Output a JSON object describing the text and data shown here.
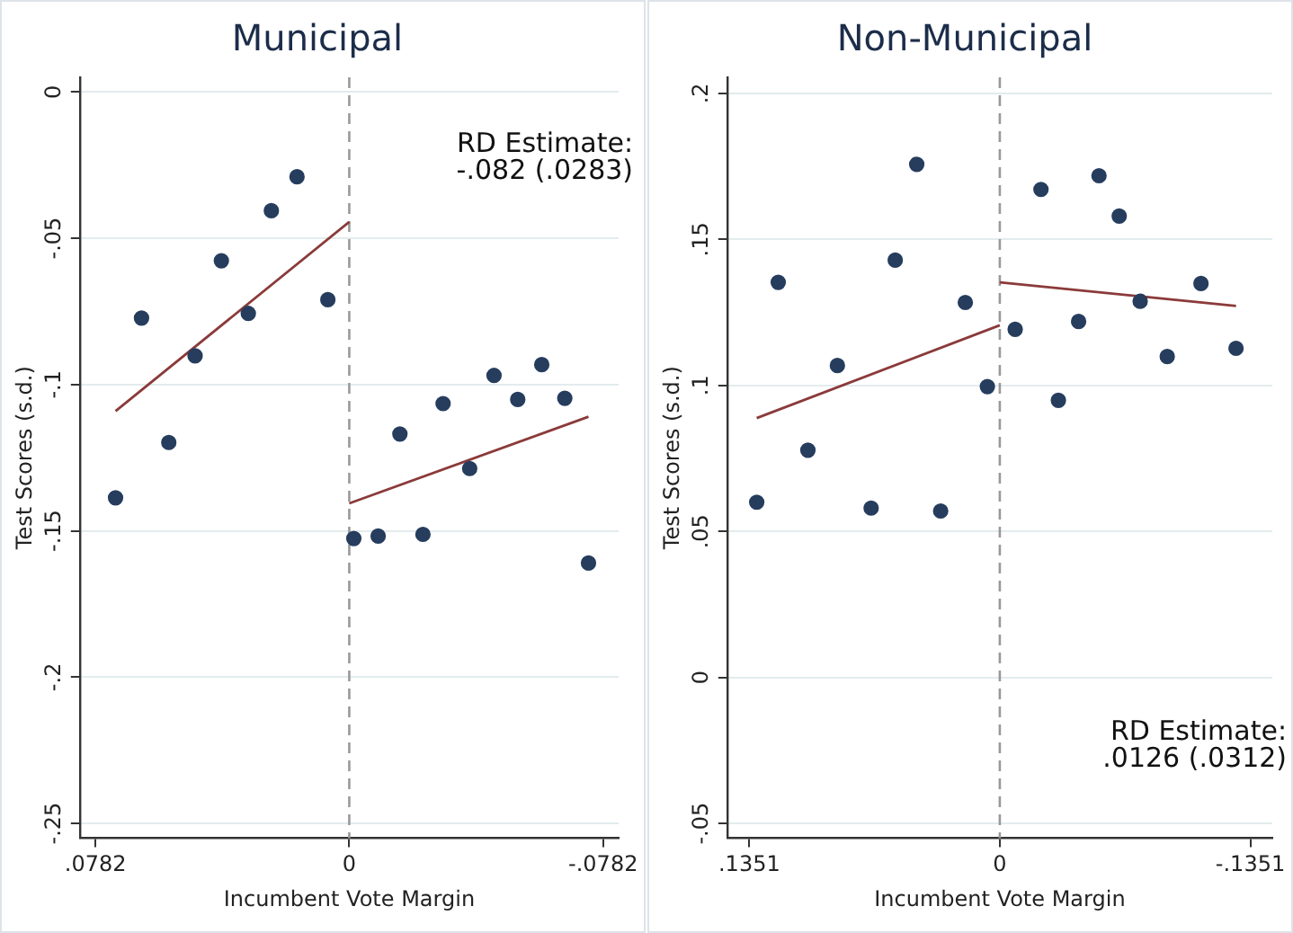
{
  "chart_data": [
    {
      "type": "scatter",
      "title": "Municipal",
      "xlabel": "Incumbent Vote Margin",
      "ylabel": "Test Scores (s.d.)",
      "annotations": [
        "RD Estimate:\n-.082 (.0283)"
      ],
      "xlim": [
        0.083,
        -0.083
      ],
      "xticks": [
        {
          "value": 0.0782,
          "label": ".0782"
        },
        0,
        {
          "value": -0.0782,
          "label": "-.0782"
        }
      ],
      "ylim": [
        -0.255,
        0.005
      ],
      "yticks": [
        0,
        {
          "value": -0.05,
          "label": "-.05"
        },
        {
          "value": -0.1,
          "label": "-.1"
        },
        {
          "value": -0.15,
          "label": "-.15"
        },
        {
          "value": -0.2,
          "label": "-.2"
        },
        {
          "value": -0.25,
          "label": "-.25"
        }
      ],
      "grid": "y",
      "ref_lines": [
        {
          "axis": "x",
          "value": 0,
          "color": "#999999",
          "line_style": "dashed"
        }
      ],
      "series": [
        {
          "color": "#263d5e",
          "marker": "circle",
          "x": [
            0.072,
            0.064,
            0.0556,
            0.0475,
            0.0394,
            0.0311,
            0.024,
            0.0161,
            0.0066,
            -0.0014,
            -0.0089,
            -0.0156,
            -0.0227,
            -0.0289,
            -0.0371,
            -0.0446,
            -0.0519,
            -0.0593,
            -0.0664,
            -0.0737
          ],
          "values": [
            -0.1387,
            -0.0773,
            -0.1198,
            -0.0902,
            -0.0577,
            -0.0757,
            -0.0406,
            -0.029,
            -0.071,
            -0.1526,
            -0.1518,
            -0.1169,
            -0.1512,
            -0.1065,
            -0.1287,
            -0.0969,
            -0.1051,
            -0.0932,
            -0.1047,
            -0.161
          ]
        },
        {
          "type": "line",
          "color": "#8b3a3a",
          "marker": "none",
          "x": [
            0.072,
            0
          ],
          "values": [
            -0.1091,
            -0.0444
          ]
        },
        {
          "type": "line",
          "color": "#8b3a3a",
          "marker": "none",
          "x": [
            0,
            -0.0737
          ],
          "values": [
            -0.1406,
            -0.111
          ]
        }
      ]
    },
    {
      "type": "scatter",
      "title": "Non-Municipal",
      "xlabel": "Incumbent Vote Margin",
      "ylabel": "Test Scores (s.d.)",
      "annotations": [
        "RD Estimate:\n.0126 (.0312)"
      ],
      "xlim": [
        0.147,
        -0.147
      ],
      "xticks": [
        {
          "value": 0.1351,
          "label": ".1351"
        },
        0,
        {
          "value": -0.1351,
          "label": "-.1351"
        }
      ],
      "ylim": [
        -0.055,
        0.2055
      ],
      "yticks": [
        {
          "value": -0.05,
          "label": "-.05"
        },
        0,
        {
          "value": 0.05,
          "label": ".05"
        },
        {
          "value": 0.1,
          "label": ".1"
        },
        {
          "value": 0.15,
          "label": ".15"
        },
        {
          "value": 0.2,
          "label": ".2"
        }
      ],
      "grid": "y",
      "ref_lines": [
        {
          "axis": "x",
          "value": 0,
          "color": "#999999",
          "line_style": "dashed"
        }
      ],
      "series": [
        {
          "color": "#263d5e",
          "marker": "circle",
          "x": [
            0.1311,
            0.1195,
            0.1035,
            0.0876,
            0.0694,
            0.0564,
            0.0448,
            0.0319,
            0.0186,
            0.0067,
            -0.0083,
            -0.0222,
            -0.0316,
            -0.0425,
            -0.0535,
            -0.0644,
            -0.0757,
            -0.0903,
            -0.1085,
            -0.1274
          ],
          "values": [
            0.06,
            0.1353,
            0.0778,
            0.1068,
            0.058,
            0.1429,
            0.1757,
            0.057,
            0.1284,
            0.0996,
            0.1192,
            0.1671,
            0.0949,
            0.1219,
            0.1718,
            0.158,
            0.1288,
            0.1099,
            0.1349,
            0.1127
          ]
        },
        {
          "type": "line",
          "color": "#8b3a3a",
          "marker": "none",
          "x": [
            0.1311,
            0
          ],
          "values": [
            0.0888,
            0.1206
          ]
        },
        {
          "type": "line",
          "color": "#8b3a3a",
          "marker": "none",
          "x": [
            0,
            -0.1274
          ],
          "values": [
            0.1353,
            0.1272
          ]
        }
      ]
    }
  ]
}
